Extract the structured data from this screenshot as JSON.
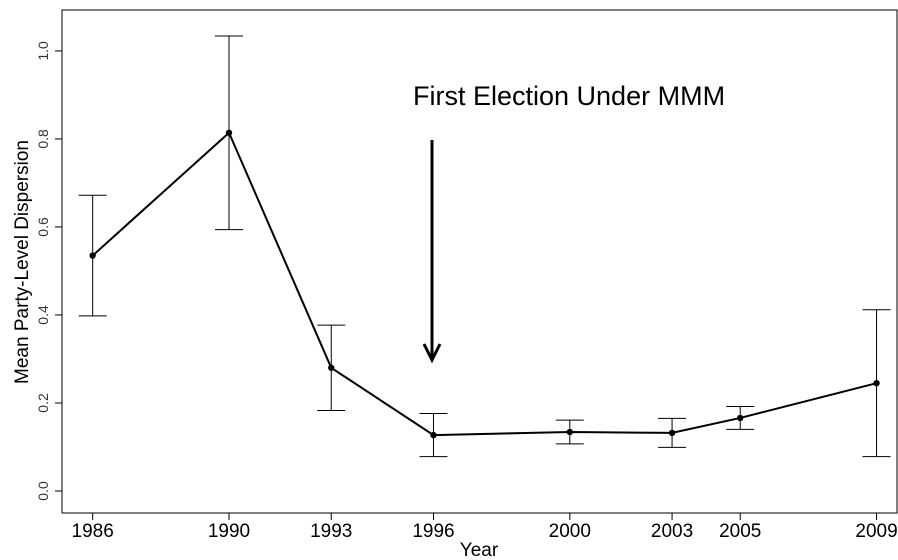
{
  "chart_data": {
    "type": "line",
    "x": [
      1986,
      1990,
      1993,
      1996,
      2000,
      2003,
      2005,
      2009
    ],
    "series": [
      {
        "color": "#000000",
        "values": [
          0.535,
          0.814,
          0.28,
          0.127,
          0.134,
          0.132,
          0.166,
          0.245
        ],
        "errors": [
          0.137,
          0.22,
          0.097,
          0.049,
          0.027,
          0.033,
          0.026,
          0.167
        ]
      }
    ],
    "xlabel": "Year",
    "ylabel": "Mean Party-Level Dispersion",
    "annotation": "First Election Under MMM",
    "xlim": [
      1985.1,
      2009.6
    ],
    "ylim": [
      -0.05,
      1.093
    ],
    "xticks": [
      1986,
      1990,
      1993,
      1996,
      2000,
      2003,
      2005,
      2009
    ],
    "yticks": [
      {
        "value": 0,
        "label": "0.0"
      },
      0.2,
      0.4,
      0.6,
      0.8,
      {
        "value": 1,
        "label": "1.0"
      }
    ]
  }
}
